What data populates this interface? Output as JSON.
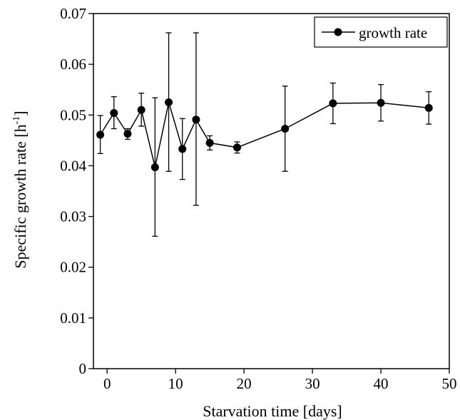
{
  "chart_data": {
    "type": "line",
    "title": "",
    "xlabel": "Starvation time [days]",
    "ylabel_main": "Specific growth rate [h",
    "ylabel_sup": "-1",
    "ylabel_close": "]",
    "xlim": [
      -2,
      50
    ],
    "ylim": [
      0,
      0.07
    ],
    "xticks": [
      0,
      10,
      20,
      30,
      40,
      50
    ],
    "xtick_labels": [
      "0",
      "10",
      "20",
      "30",
      "40",
      "50"
    ],
    "yticks": [
      0,
      0.01,
      0.02,
      0.03,
      0.04,
      0.05,
      0.06,
      0.07
    ],
    "ytick_labels": [
      "0",
      "0.01",
      "0.02",
      "0.03",
      "0.04",
      "0.05",
      "0.06",
      "0.07"
    ],
    "grid": false,
    "legend_position": "top-right",
    "series": [
      {
        "name": "growth rate",
        "color": "#000000",
        "marker": "circle",
        "x": [
          -1,
          1,
          3,
          5,
          7,
          9,
          11,
          13,
          15,
          19,
          26,
          33,
          40,
          47
        ],
        "y": [
          0.0461,
          0.0504,
          0.0463,
          0.051,
          0.0397,
          0.0525,
          0.0433,
          0.0491,
          0.0445,
          0.0436,
          0.0473,
          0.0523,
          0.0524,
          0.0514
        ],
        "err_low": [
          0.0424,
          0.0473,
          0.0452,
          0.0478,
          0.0261,
          0.0389,
          0.0373,
          0.0322,
          0.0431,
          0.0425,
          0.0389,
          0.0483,
          0.0488,
          0.0482
        ],
        "err_high": [
          0.0499,
          0.0536,
          0.0473,
          0.0543,
          0.0534,
          0.0662,
          0.0493,
          0.0662,
          0.0459,
          0.0447,
          0.0557,
          0.0563,
          0.056,
          0.0546
        ]
      }
    ]
  }
}
